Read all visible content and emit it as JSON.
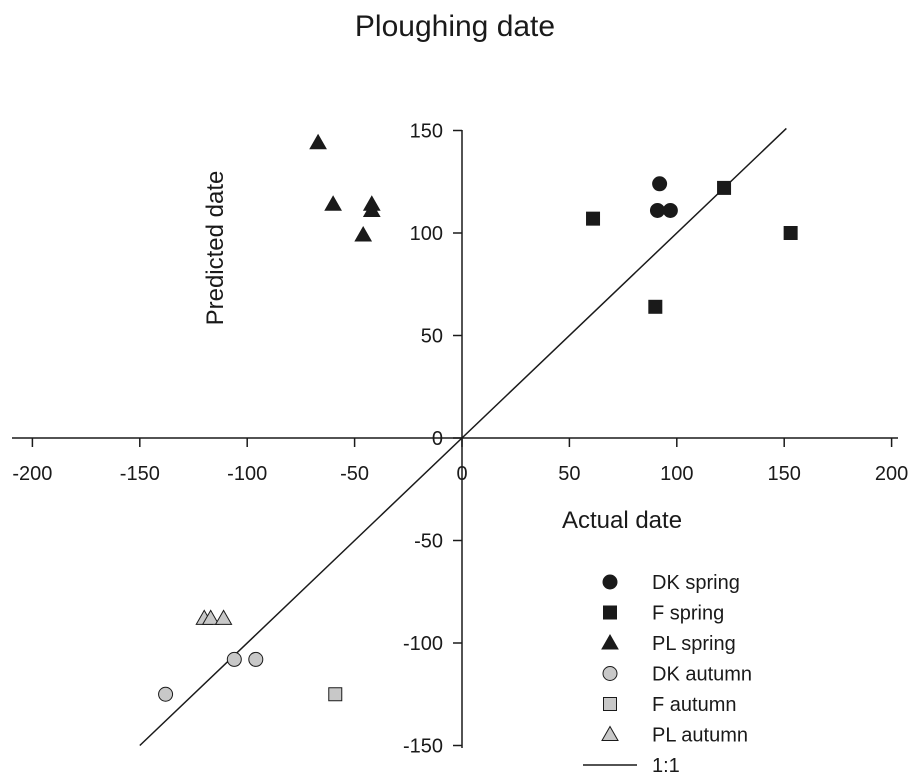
{
  "chart_data": {
    "type": "scatter",
    "title": "Ploughing date",
    "xlabel": "Actual date",
    "ylabel": "Predicted date",
    "xlim": [
      -200,
      200
    ],
    "ylim": [
      -150,
      150
    ],
    "x_ticks": [
      -200,
      -150,
      -100,
      -50,
      0,
      50,
      100,
      150,
      200
    ],
    "y_ticks": [
      -150,
      -100,
      -50,
      0,
      50,
      100,
      150
    ],
    "x_tick_labels": [
      "-200",
      "-150",
      "-100",
      "-50",
      "0",
      "50",
      "100",
      "150",
      "200"
    ],
    "y_tick_labels": [
      "-150",
      "-100",
      "-50",
      "0",
      "50",
      "100",
      "150"
    ],
    "grid": false,
    "legend_position": "bottom-right",
    "series": [
      {
        "name": "DK spring",
        "marker": "circle",
        "fill": "#1a1a1a",
        "points": [
          [
            92,
            124
          ],
          [
            91,
            111
          ],
          [
            97,
            111
          ]
        ]
      },
      {
        "name": "F spring",
        "marker": "square",
        "fill": "#1a1a1a",
        "points": [
          [
            61,
            107
          ],
          [
            122,
            122
          ],
          [
            153,
            100
          ],
          [
            90,
            64
          ]
        ]
      },
      {
        "name": "PL spring",
        "marker": "triangle",
        "fill": "#1a1a1a",
        "points": [
          [
            -67,
            144
          ],
          [
            -60,
            114
          ],
          [
            -42,
            114
          ],
          [
            -42,
            111
          ],
          [
            -46,
            99
          ]
        ]
      },
      {
        "name": "DK autumn",
        "marker": "circle",
        "fill": "#c8c8c8",
        "points": [
          [
            -138,
            -125
          ],
          [
            -106,
            -108
          ],
          [
            -96,
            -108
          ]
        ]
      },
      {
        "name": "F autumn",
        "marker": "square",
        "fill": "#c8c8c8",
        "points": [
          [
            -59,
            -125
          ]
        ]
      },
      {
        "name": "PL autumn",
        "marker": "triangle",
        "fill": "#c8c8c8",
        "points": [
          [
            -120,
            -88
          ],
          [
            -117,
            -88
          ],
          [
            -111,
            -88
          ]
        ]
      }
    ],
    "reference_line": {
      "name": "1:1",
      "from": [
        -150,
        -150
      ],
      "to": [
        151,
        151
      ]
    }
  }
}
